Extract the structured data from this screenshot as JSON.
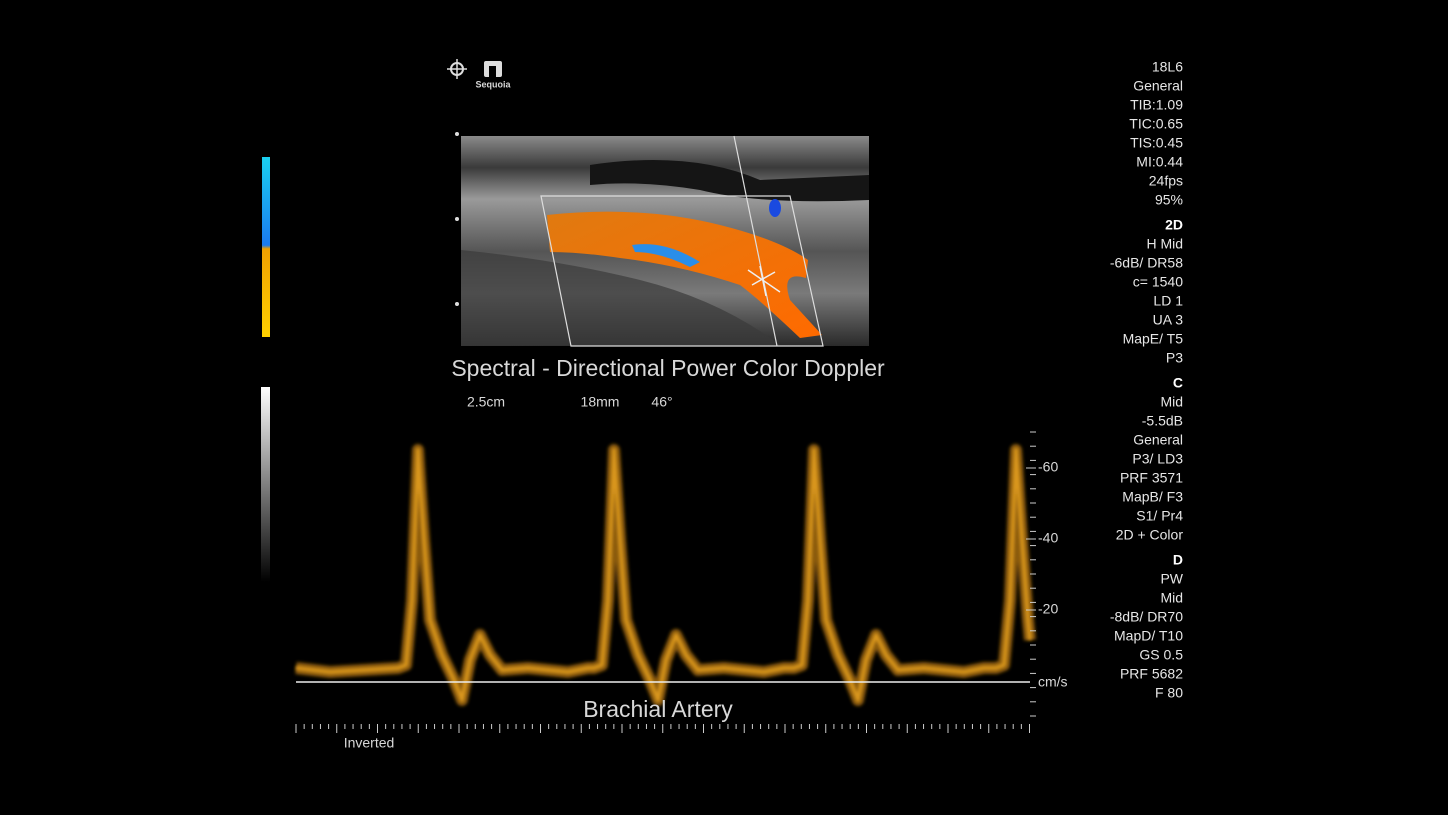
{
  "header": {
    "logo": "Sequoia"
  },
  "parameters": {
    "general": [
      "18L6",
      "General",
      "TIB:1.09",
      "TIC:0.65",
      "TIS:0.45",
      "MI:0.44",
      "24fps",
      "95%"
    ],
    "groups": [
      {
        "heading": "2D",
        "items": [
          "H Mid",
          "-6dB/ DR58",
          "c= 1540",
          "LD 1",
          "UA 3",
          "MapE/ T5",
          "P3"
        ]
      },
      {
        "heading": "C",
        "items": [
          "Mid",
          "-5.5dB",
          "General",
          "P3/ LD3",
          "PRF 3571",
          "MapB/ F3",
          "S1/ Pr4",
          "2D + Color"
        ]
      },
      {
        "heading": "D",
        "items": [
          "PW",
          "Mid",
          "-8dB/ DR70",
          "MapD/ T10",
          "GS 0.5",
          "PRF 5682",
          "F 80"
        ]
      }
    ]
  },
  "image": {
    "mode": "Spectral - Directional Power Color Doppler",
    "depth": "2.5cm",
    "gate": "18mm",
    "angle": "46°"
  },
  "spectrum": {
    "scale_labels": [
      "-60",
      "-40",
      "-20"
    ],
    "unit": "cm/s",
    "label": "Brachial Artery",
    "inverted": "Inverted"
  }
}
